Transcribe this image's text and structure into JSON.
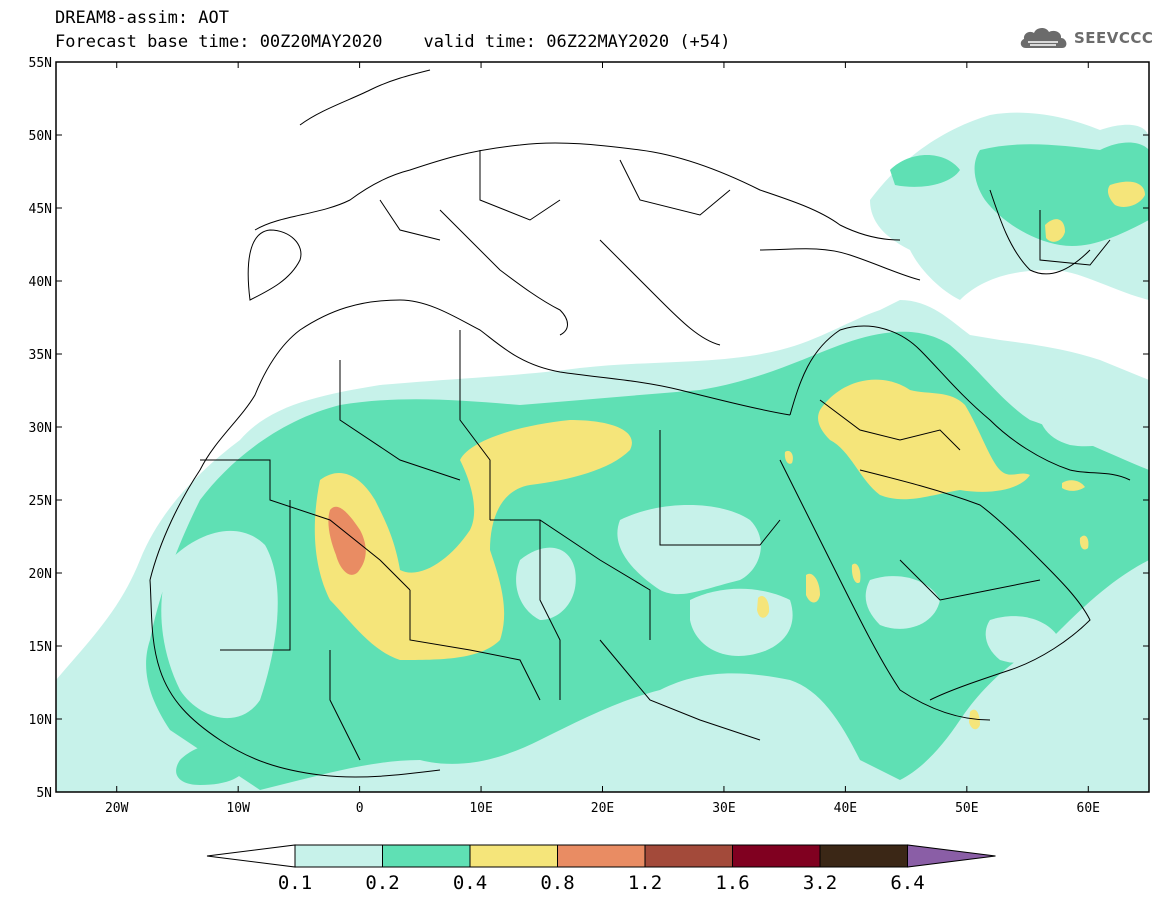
{
  "header": {
    "line1": "DREAM8-assim: AOT",
    "line2": "Forecast base time: 00Z20MAY2020    valid time: 06Z22MAY2020 (+54)"
  },
  "logo": {
    "text": "SEEVCCC",
    "icon": "cloud-logo-icon"
  },
  "map": {
    "lon_range": [
      -25,
      65
    ],
    "lat_range": [
      5,
      55
    ],
    "lat_labels": [
      "55N",
      "50N",
      "45N",
      "40N",
      "35N",
      "30N",
      "25N",
      "20N",
      "15N",
      "10N",
      "5N"
    ],
    "lat_values": [
      55,
      50,
      45,
      40,
      35,
      30,
      25,
      20,
      15,
      10,
      5
    ],
    "lon_labels": [
      "20W",
      "10W",
      "0",
      "10E",
      "20E",
      "30E",
      "40E",
      "50E",
      "60E"
    ],
    "lon_values": [
      -20,
      -10,
      0,
      10,
      20,
      30,
      40,
      50,
      60
    ]
  },
  "colorbar": {
    "labels": [
      "0.1",
      "0.2",
      "0.4",
      "0.8",
      "1.2",
      "1.6",
      "3.2",
      "6.4"
    ],
    "colors": [
      "#ffffff",
      "#c7f2ea",
      "#5fe0b4",
      "#f5e57a",
      "#e98c63",
      "#a34a3a",
      "#800020",
      "#3b2716",
      "#8a5ea6"
    ]
  },
  "fields": {
    "very_light": "#c7f2ea",
    "light_green": "#5fe0b4",
    "yellow": "#f5e57a",
    "orange": "#e98c63"
  }
}
